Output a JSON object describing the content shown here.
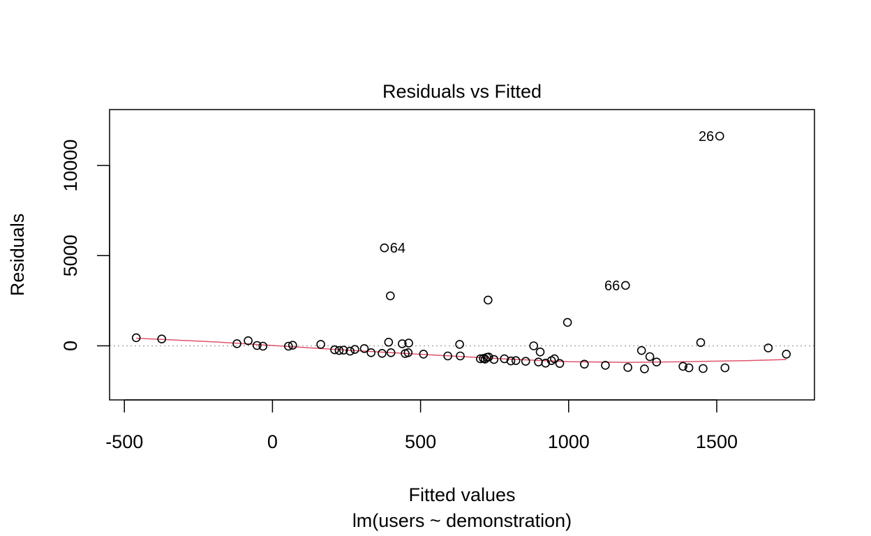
{
  "chart_data": {
    "type": "scatter",
    "title": "Residuals vs Fitted",
    "xlabel": "Fitted values",
    "subtitle": "lm(users ~ demonstration)",
    "ylabel": "Residuals",
    "xlim": [
      -550,
      1830
    ],
    "ylim": [
      -3000,
      13100
    ],
    "xticks": [
      -500,
      0,
      500,
      1000,
      1500
    ],
    "yticks": [
      0,
      5000,
      10000
    ],
    "xtick_labels": [
      "-500",
      "0",
      "500",
      "1000",
      "1500"
    ],
    "ytick_labels": [
      "0",
      "5000",
      "10000"
    ],
    "reference_line": {
      "y": 0,
      "style": "dotted",
      "color": "#aaaaaa"
    },
    "colors": {
      "points": "#000000",
      "smoother": "#df536b"
    },
    "points": [
      {
        "x": -460,
        "y": 450
      },
      {
        "x": -374,
        "y": 380
      },
      {
        "x": -120,
        "y": 120
      },
      {
        "x": -82,
        "y": 280
      },
      {
        "x": -52,
        "y": 20
      },
      {
        "x": -32,
        "y": -20
      },
      {
        "x": 54,
        "y": -20
      },
      {
        "x": 68,
        "y": 30
      },
      {
        "x": 163,
        "y": 80
      },
      {
        "x": 210,
        "y": -220
      },
      {
        "x": 225,
        "y": -260
      },
      {
        "x": 240,
        "y": -240
      },
      {
        "x": 262,
        "y": -300
      },
      {
        "x": 278,
        "y": -200
      },
      {
        "x": 310,
        "y": -150
      },
      {
        "x": 333,
        "y": -380
      },
      {
        "x": 370,
        "y": -420
      },
      {
        "x": 392,
        "y": 200
      },
      {
        "x": 400,
        "y": -380
      },
      {
        "x": 438,
        "y": 110
      },
      {
        "x": 448,
        "y": -430
      },
      {
        "x": 458,
        "y": -380
      },
      {
        "x": 460,
        "y": 150
      },
      {
        "x": 510,
        "y": -460
      },
      {
        "x": 592,
        "y": -560
      },
      {
        "x": 632,
        "y": 80
      },
      {
        "x": 634,
        "y": -560
      },
      {
        "x": 702,
        "y": -720
      },
      {
        "x": 712,
        "y": -700
      },
      {
        "x": 718,
        "y": -740
      },
      {
        "x": 724,
        "y": -640
      },
      {
        "x": 730,
        "y": -620
      },
      {
        "x": 748,
        "y": -760
      },
      {
        "x": 783,
        "y": -720
      },
      {
        "x": 805,
        "y": -840
      },
      {
        "x": 822,
        "y": -820
      },
      {
        "x": 855,
        "y": -860
      },
      {
        "x": 882,
        "y": 0
      },
      {
        "x": 898,
        "y": -900
      },
      {
        "x": 904,
        "y": -340
      },
      {
        "x": 922,
        "y": -960
      },
      {
        "x": 942,
        "y": -820
      },
      {
        "x": 952,
        "y": -720
      },
      {
        "x": 970,
        "y": -980
      },
      {
        "x": 1053,
        "y": -1020
      },
      {
        "x": 1124,
        "y": -1080
      },
      {
        "x": 1200,
        "y": -1200
      },
      {
        "x": 1246,
        "y": -260
      },
      {
        "x": 1256,
        "y": -1280
      },
      {
        "x": 1274,
        "y": -600
      },
      {
        "x": 1297,
        "y": -900
      },
      {
        "x": 1386,
        "y": -1140
      },
      {
        "x": 1406,
        "y": -1220
      },
      {
        "x": 1446,
        "y": 180
      },
      {
        "x": 1454,
        "y": -1260
      },
      {
        "x": 1528,
        "y": -1220
      },
      {
        "x": 1674,
        "y": -120
      },
      {
        "x": 1735,
        "y": -460
      },
      {
        "x": 398,
        "y": 2770
      },
      {
        "x": 728,
        "y": 2540
      },
      {
        "x": 996,
        "y": 1300
      },
      {
        "x": 378,
        "y": 5430,
        "label": "64",
        "label_side": "right"
      },
      {
        "x": 1192,
        "y": 3350,
        "label": "66",
        "label_side": "left"
      },
      {
        "x": 1510,
        "y": 11630,
        "label": "26",
        "label_side": "left"
      }
    ],
    "smoother": [
      {
        "x": -460,
        "y": 420
      },
      {
        "x": -200,
        "y": 220
      },
      {
        "x": 0,
        "y": 20
      },
      {
        "x": 200,
        "y": -190
      },
      {
        "x": 400,
        "y": -380
      },
      {
        "x": 600,
        "y": -560
      },
      {
        "x": 800,
        "y": -740
      },
      {
        "x": 1000,
        "y": -880
      },
      {
        "x": 1200,
        "y": -920
      },
      {
        "x": 1400,
        "y": -880
      },
      {
        "x": 1600,
        "y": -820
      },
      {
        "x": 1735,
        "y": -760
      }
    ]
  }
}
